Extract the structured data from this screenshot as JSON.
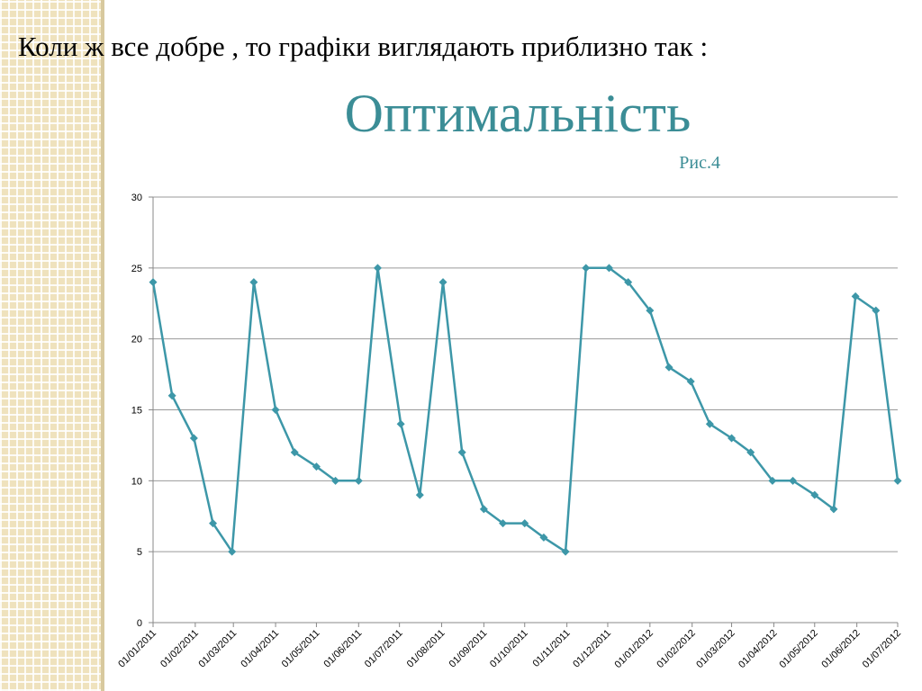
{
  "slide": {
    "heading": "Коли ж все добре , то графіки виглядають приблизно так :",
    "title": "Оптимальність",
    "caption": "Рис.4",
    "accent_color": "#3b8d96"
  },
  "chart_data": {
    "type": "line",
    "title": "",
    "xlabel": "",
    "ylabel": "",
    "ylim": [
      0,
      30
    ],
    "yticks": [
      0,
      5,
      10,
      15,
      20,
      25,
      30
    ],
    "grid": true,
    "legend": "none",
    "line_color": "#3d97a8",
    "x_tick_labels": [
      "01/01/2011",
      "01/02/2011",
      "01/03/2011",
      "01/04/2011",
      "01/05/2011",
      "01/06/2011",
      "01/07/2011",
      "01/08/2011",
      "01/09/2011",
      "01/10/2011",
      "01/11/2011",
      "01/12/2011",
      "01/01/2012",
      "01/02/2012",
      "01/03/2012",
      "01/04/2012",
      "01/05/2012",
      "01/06/2012",
      "01/07/2012"
    ],
    "x_range": [
      "01/01/2011",
      "01/07/2012"
    ],
    "series": [
      {
        "points": [
          {
            "x": "01/01/2011",
            "y": 24
          },
          {
            "x": "15/01/2011",
            "y": 16
          },
          {
            "x": "31/01/2011",
            "y": 13
          },
          {
            "x": "14/02/2011",
            "y": 7
          },
          {
            "x": "28/02/2011",
            "y": 5
          },
          {
            "x": "16/03/2011",
            "y": 24
          },
          {
            "x": "01/04/2011",
            "y": 15
          },
          {
            "x": "15/04/2011",
            "y": 12
          },
          {
            "x": "01/05/2011",
            "y": 11
          },
          {
            "x": "15/05/2011",
            "y": 10
          },
          {
            "x": "01/06/2011",
            "y": 10
          },
          {
            "x": "15/06/2011",
            "y": 25
          },
          {
            "x": "02/07/2011",
            "y": 14
          },
          {
            "x": "16/07/2011",
            "y": 9
          },
          {
            "x": "02/08/2011",
            "y": 24
          },
          {
            "x": "16/08/2011",
            "y": 12
          },
          {
            "x": "01/09/2011",
            "y": 8
          },
          {
            "x": "15/09/2011",
            "y": 7
          },
          {
            "x": "01/10/2011",
            "y": 7
          },
          {
            "x": "15/10/2011",
            "y": 6
          },
          {
            "x": "31/10/2011",
            "y": 5
          },
          {
            "x": "15/11/2011",
            "y": 25
          },
          {
            "x": "02/12/2011",
            "y": 25
          },
          {
            "x": "16/12/2011",
            "y": 24
          },
          {
            "x": "01/01/2012",
            "y": 22
          },
          {
            "x": "15/01/2012",
            "y": 18
          },
          {
            "x": "31/01/2012",
            "y": 17
          },
          {
            "x": "14/02/2012",
            "y": 14
          },
          {
            "x": "01/03/2012",
            "y": 13
          },
          {
            "x": "15/03/2012",
            "y": 12
          },
          {
            "x": "31/03/2012",
            "y": 10
          },
          {
            "x": "15/04/2012",
            "y": 10
          },
          {
            "x": "01/05/2012",
            "y": 9
          },
          {
            "x": "15/05/2012",
            "y": 8
          },
          {
            "x": "31/05/2012",
            "y": 23
          },
          {
            "x": "15/06/2012",
            "y": 22
          },
          {
            "x": "01/07/2012",
            "y": 10
          }
        ]
      }
    ]
  }
}
